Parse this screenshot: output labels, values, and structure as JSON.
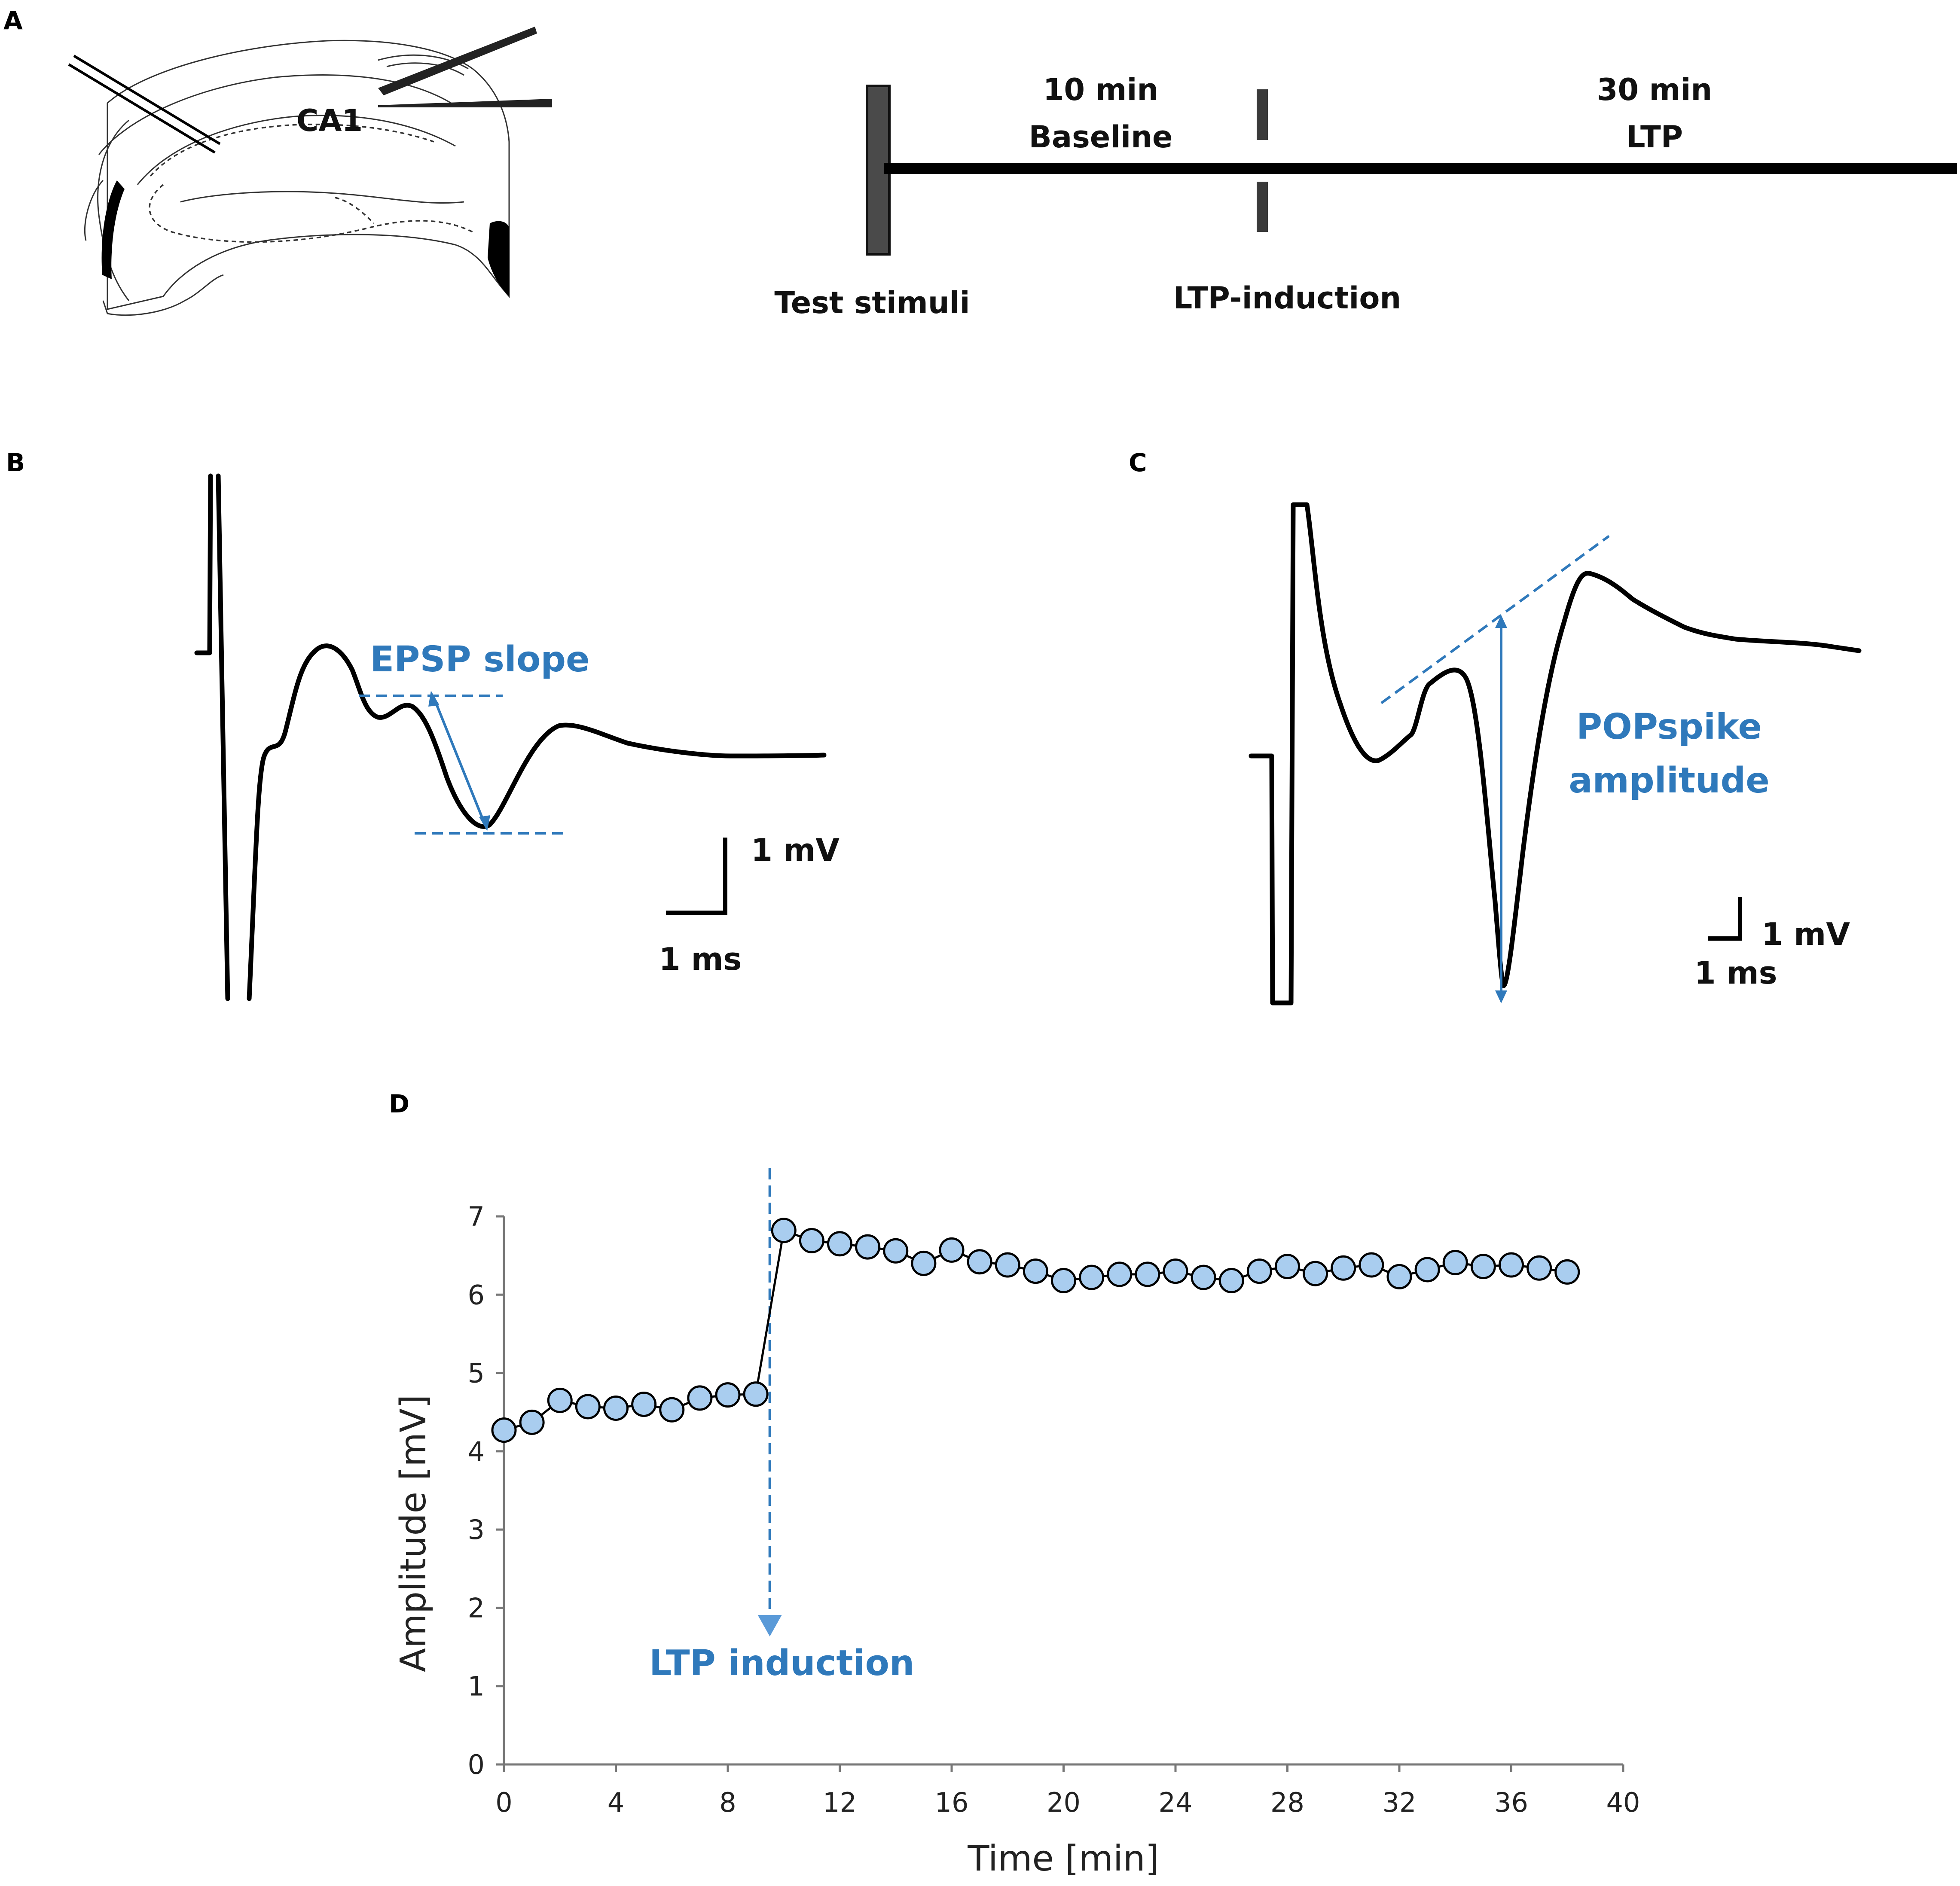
{
  "panels": {
    "a": {
      "letter": "A",
      "region_label": "CA1",
      "slice_icon": "hippocampal-slice-drawing",
      "protocol": {
        "baseline_duration": "10 min",
        "baseline_label": "Baseline",
        "ltp_duration": "30 min",
        "ltp_label": "LTP",
        "test_stimuli_label": "Test stimuli",
        "induction_label": "LTP-induction"
      }
    },
    "b": {
      "letter": "B",
      "measure_label": "EPSP slope",
      "scale_voltage": "1 mV",
      "scale_time": "1 ms"
    },
    "c": {
      "letter": "C",
      "measure_label_line1": "POPspike",
      "measure_label_line2": "amplitude",
      "scale_voltage": "1 mV",
      "scale_time": "1 ms"
    },
    "d": {
      "letter": "D",
      "annotation": "LTP induction"
    }
  },
  "colors": {
    "accent_blue": "#2f79bb",
    "marker_fill": "#a9cdef",
    "trace": "#000000"
  },
  "chart_data": {
    "type": "scatter",
    "xlabel": "Time [min]",
    "ylabel": "Amplitude [mV]",
    "xlim": [
      0,
      40
    ],
    "ylim": [
      0,
      7
    ],
    "xticks": [
      0,
      4,
      8,
      12,
      16,
      20,
      24,
      28,
      32,
      36,
      40
    ],
    "yticks": [
      0,
      1,
      2,
      3,
      4,
      5,
      6,
      7
    ],
    "grid": false,
    "legend": "none",
    "induction_time": 9.5,
    "series": [
      {
        "x": [
          0,
          1,
          2,
          3,
          4,
          5,
          6,
          7,
          8,
          9,
          10,
          11,
          12,
          13,
          14,
          15,
          16,
          17,
          18,
          19,
          20,
          21,
          22,
          23,
          24,
          25,
          26,
          27,
          28,
          29,
          30,
          31,
          32,
          33,
          34,
          35,
          36,
          37,
          38
        ],
        "y": [
          4.27,
          4.37,
          4.65,
          4.57,
          4.55,
          4.6,
          4.53,
          4.68,
          4.72,
          4.73,
          6.82,
          6.69,
          6.65,
          6.61,
          6.56,
          6.4,
          6.57,
          6.42,
          6.38,
          6.3,
          6.18,
          6.22,
          6.26,
          6.26,
          6.3,
          6.22,
          6.18,
          6.3,
          6.36,
          6.27,
          6.34,
          6.38,
          6.23,
          6.32,
          6.41,
          6.36,
          6.38,
          6.34,
          6.29
        ]
      }
    ]
  }
}
